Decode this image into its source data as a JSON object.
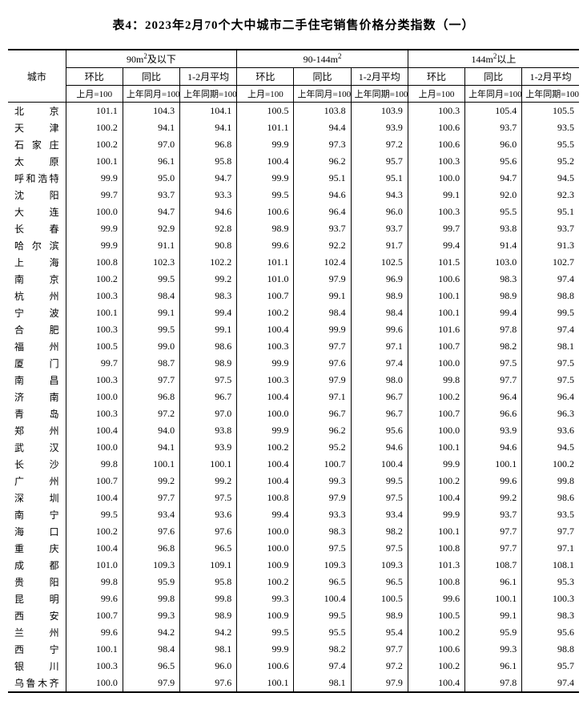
{
  "title": "表4：2023年2月70个大中城市二手住宅销售价格分类指数（一）",
  "header": {
    "city": "城市",
    "groups": [
      "90m²及以下",
      "90-144m²",
      "144m²以上"
    ],
    "subs": [
      "环比",
      "同比",
      "1-2月平均"
    ],
    "bases": [
      "上月=100",
      "上年同月=100",
      "上年同期=100"
    ]
  },
  "rows": [
    {
      "city": "北京",
      "v": [
        101.1,
        104.3,
        104.1,
        100.5,
        103.8,
        103.9,
        100.3,
        105.4,
        105.5
      ]
    },
    {
      "city": "天津",
      "v": [
        100.2,
        94.1,
        94.1,
        101.1,
        94.4,
        93.9,
        100.6,
        93.7,
        93.5
      ]
    },
    {
      "city": "石家庄",
      "v": [
        100.2,
        97.0,
        96.8,
        99.9,
        97.3,
        97.2,
        100.6,
        96.0,
        95.5
      ]
    },
    {
      "city": "太原",
      "v": [
        100.1,
        96.1,
        95.8,
        100.4,
        96.2,
        95.7,
        100.3,
        95.6,
        95.2
      ]
    },
    {
      "city": "呼和浩特",
      "v": [
        99.9,
        95.0,
        94.7,
        99.9,
        95.1,
        95.1,
        100.0,
        94.7,
        94.5
      ]
    },
    {
      "city": "沈阳",
      "v": [
        99.7,
        93.7,
        93.3,
        99.5,
        94.6,
        94.3,
        99.1,
        92.0,
        92.3
      ]
    },
    {
      "city": "大连",
      "v": [
        100.0,
        94.7,
        94.6,
        100.6,
        96.4,
        96.0,
        100.3,
        95.5,
        95.1
      ]
    },
    {
      "city": "长春",
      "v": [
        99.9,
        92.9,
        92.8,
        98.9,
        93.7,
        93.7,
        99.7,
        93.8,
        93.7
      ]
    },
    {
      "city": "哈尔滨",
      "v": [
        99.9,
        91.1,
        90.8,
        99.6,
        92.2,
        91.7,
        99.4,
        91.4,
        91.3
      ]
    },
    {
      "city": "上海",
      "v": [
        100.8,
        102.3,
        102.2,
        101.1,
        102.4,
        102.5,
        101.5,
        103.0,
        102.7
      ]
    },
    {
      "city": "南京",
      "v": [
        100.2,
        99.5,
        99.2,
        101.0,
        97.9,
        96.9,
        100.6,
        98.3,
        97.4
      ]
    },
    {
      "city": "杭州",
      "v": [
        100.3,
        98.4,
        98.3,
        100.7,
        99.1,
        98.9,
        100.1,
        98.9,
        98.8
      ]
    },
    {
      "city": "宁波",
      "v": [
        100.1,
        99.1,
        99.4,
        100.2,
        98.4,
        98.4,
        100.1,
        99.4,
        99.5
      ]
    },
    {
      "city": "合肥",
      "v": [
        100.3,
        99.5,
        99.1,
        100.4,
        99.9,
        99.6,
        101.6,
        97.8,
        97.4
      ]
    },
    {
      "city": "福州",
      "v": [
        100.5,
        99.0,
        98.6,
        100.3,
        97.7,
        97.1,
        100.7,
        98.2,
        98.1
      ]
    },
    {
      "city": "厦门",
      "v": [
        99.7,
        98.7,
        98.9,
        99.9,
        97.6,
        97.4,
        100.0,
        97.5,
        97.5
      ]
    },
    {
      "city": "南昌",
      "v": [
        100.3,
        97.7,
        97.5,
        100.3,
        97.9,
        98.0,
        99.8,
        97.7,
        97.5
      ]
    },
    {
      "city": "济南",
      "v": [
        100.0,
        96.8,
        96.7,
        100.4,
        97.1,
        96.7,
        100.2,
        96.4,
        96.4
      ]
    },
    {
      "city": "青岛",
      "v": [
        100.3,
        97.2,
        97.0,
        100.0,
        96.7,
        96.7,
        100.7,
        96.6,
        96.3
      ]
    },
    {
      "city": "郑州",
      "v": [
        100.4,
        94.0,
        93.8,
        99.9,
        96.2,
        95.6,
        100.0,
        93.9,
        93.6
      ]
    },
    {
      "city": "武汉",
      "v": [
        100.0,
        94.1,
        93.9,
        100.2,
        95.2,
        94.6,
        100.1,
        94.6,
        94.5
      ]
    },
    {
      "city": "长沙",
      "v": [
        99.8,
        100.1,
        100.1,
        100.4,
        100.7,
        100.4,
        99.9,
        100.1,
        100.2
      ]
    },
    {
      "city": "广州",
      "v": [
        100.7,
        99.2,
        99.2,
        100.4,
        99.3,
        99.5,
        100.2,
        99.6,
        99.8
      ]
    },
    {
      "city": "深圳",
      "v": [
        100.4,
        97.7,
        97.5,
        100.8,
        97.9,
        97.5,
        100.4,
        99.2,
        98.6
      ]
    },
    {
      "city": "南宁",
      "v": [
        99.5,
        93.4,
        93.6,
        99.4,
        93.3,
        93.4,
        99.9,
        93.7,
        93.5
      ]
    },
    {
      "city": "海口",
      "v": [
        100.2,
        97.6,
        97.6,
        100.0,
        98.3,
        98.2,
        100.1,
        97.7,
        97.7
      ]
    },
    {
      "city": "重庆",
      "v": [
        100.4,
        96.8,
        96.5,
        100.0,
        97.5,
        97.5,
        100.8,
        97.7,
        97.1
      ]
    },
    {
      "city": "成都",
      "v": [
        101.0,
        109.3,
        109.1,
        100.9,
        109.3,
        109.3,
        101.3,
        108.7,
        108.1
      ]
    },
    {
      "city": "贵阳",
      "v": [
        99.8,
        95.9,
        95.8,
        100.2,
        96.5,
        96.5,
        100.8,
        96.1,
        95.3
      ]
    },
    {
      "city": "昆明",
      "v": [
        99.6,
        99.8,
        99.8,
        99.3,
        100.4,
        100.5,
        99.6,
        100.1,
        100.3
      ]
    },
    {
      "city": "西安",
      "v": [
        100.7,
        99.3,
        98.9,
        100.9,
        99.5,
        98.9,
        100.5,
        99.1,
        98.3
      ]
    },
    {
      "city": "兰州",
      "v": [
        99.6,
        94.2,
        94.2,
        99.5,
        95.5,
        95.4,
        100.2,
        95.9,
        95.6
      ]
    },
    {
      "city": "西宁",
      "v": [
        100.1,
        98.4,
        98.1,
        99.9,
        98.2,
        97.7,
        100.6,
        99.3,
        98.8
      ]
    },
    {
      "city": "银川",
      "v": [
        100.3,
        96.5,
        96.0,
        100.6,
        97.4,
        97.2,
        100.2,
        96.1,
        95.7
      ]
    },
    {
      "city": "乌鲁木齐",
      "v": [
        100.0,
        97.9,
        97.6,
        100.1,
        98.1,
        97.9,
        100.4,
        97.8,
        97.4
      ]
    }
  ],
  "style": {
    "background_color": "#ffffff",
    "text_color": "#000000",
    "title_fontsize": 15,
    "body_fontsize": 12,
    "base_fontsize": 11,
    "border_heavy": "2px solid #000",
    "border_thin": "1px solid #000"
  }
}
